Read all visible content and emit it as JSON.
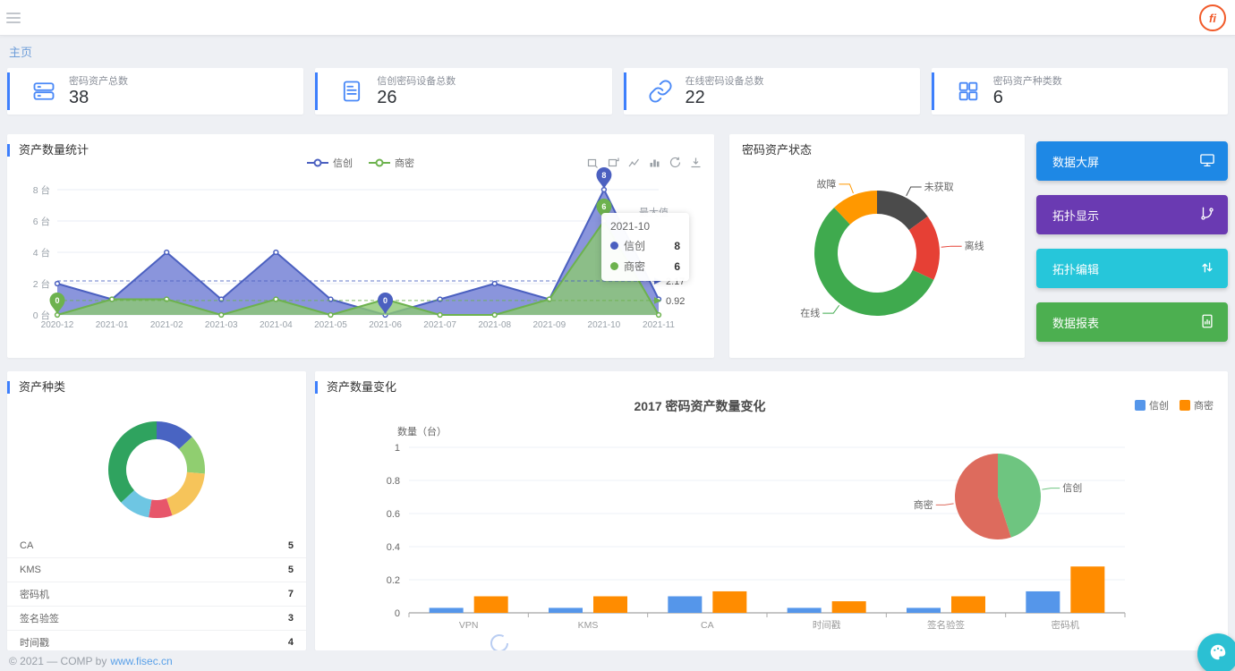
{
  "header": {
    "logo_text": "fi"
  },
  "breadcrumb": {
    "home": "主页"
  },
  "stat_cards": [
    {
      "label": "密码资产总数",
      "value": "38",
      "icon": "server-icon"
    },
    {
      "label": "信创密码设备总数",
      "value": "26",
      "icon": "device-document-icon"
    },
    {
      "label": "在线密码设备总数",
      "value": "22",
      "icon": "link-icon"
    },
    {
      "label": "密码资产种类数",
      "value": "6",
      "icon": "grid-icon"
    }
  ],
  "panels": {
    "asset_count": {
      "title": "资产数量统计"
    },
    "asset_status": {
      "title": "密码资产状态"
    },
    "asset_type": {
      "title": "资产种类"
    },
    "asset_change": {
      "title": "资产数量变化"
    }
  },
  "toolbox_icons": [
    "area-zoom-icon",
    "zoom-reset-icon",
    "line-type-icon",
    "bar-type-icon",
    "restore-icon",
    "save-image-icon"
  ],
  "action_buttons": [
    {
      "label": "数据大屏",
      "color": "#1e88e5",
      "icon": "monitor-icon"
    },
    {
      "label": "拓扑显示",
      "color": "#6a3ab2",
      "icon": "topology-icon"
    },
    {
      "label": "拓扑编辑",
      "color": "#26c6da",
      "icon": "swap-arrows-icon"
    },
    {
      "label": "数据报表",
      "color": "#4caf50",
      "icon": "report-icon"
    }
  ],
  "asset_type_list": [
    {
      "label": "CA",
      "value": "5"
    },
    {
      "label": "KMS",
      "value": "5"
    },
    {
      "label": "密码机",
      "value": "7"
    },
    {
      "label": "签名验签",
      "value": "3"
    },
    {
      "label": "时间戳",
      "value": "4"
    }
  ],
  "footer": {
    "text": "© 2021 — COMP by",
    "link": "www.fisec.cn"
  },
  "colors": {
    "accent_blue": "#3d7ffc",
    "card_icon_blue": "#4a89f7",
    "floating_button_teal": "#2bc0d3",
    "logo_orange": "#f15a29"
  },
  "chart_data": [
    {
      "type": "line",
      "title": "资产数量统计",
      "x": [
        "2020-12",
        "2021-01",
        "2021-02",
        "2021-03",
        "2021-04",
        "2021-05",
        "2021-06",
        "2021-07",
        "2021-08",
        "2021-09",
        "2021-10",
        "2021-11"
      ],
      "series": [
        {
          "name": "信创",
          "line_color": "#4b60c0",
          "area_color": "#7583d6",
          "area_opacity": 0.85,
          "values": [
            2,
            1,
            4,
            1,
            4,
            1,
            0,
            1,
            2,
            1,
            8,
            1
          ],
          "avg": 2.17,
          "max": {
            "x": "2021-10",
            "value": 8
          },
          "min": {
            "x": "2021-06",
            "value": 0
          }
        },
        {
          "name": "商密",
          "line_color": "#6db24e",
          "area_color": "#8cc873",
          "area_opacity": 0.8,
          "values": [
            0,
            1,
            1,
            0,
            1,
            0,
            1,
            0,
            0,
            1,
            6,
            0
          ],
          "avg": 0.92,
          "max": {
            "x": "2021-10",
            "value": 6
          },
          "min": {
            "x": "2020-12",
            "value": 0
          }
        }
      ],
      "ylim": [
        0,
        8
      ],
      "yticks": [
        {
          "v": 0,
          "label": "0 台"
        },
        {
          "v": 2,
          "label": "2 台"
        },
        {
          "v": 4,
          "label": "4 台"
        },
        {
          "v": 6,
          "label": "6 台"
        },
        {
          "v": 8,
          "label": "8 台"
        }
      ],
      "tooltip": {
        "title": "2021-10",
        "values": [
          8,
          6
        ]
      },
      "max_label": "最大值",
      "grid": true,
      "legend_position": "top-center"
    },
    {
      "type": "pie",
      "title": "密码资产状态",
      "donut": true,
      "slices": [
        {
          "label": "未获取",
          "value": 15,
          "color": "#4b4b4b"
        },
        {
          "label": "离线",
          "value": 17,
          "color": "#e64035"
        },
        {
          "label": "在线",
          "value": 56,
          "color": "#3faa4e"
        },
        {
          "label": "故障",
          "value": 12,
          "color": "#ff9800"
        }
      ]
    },
    {
      "type": "pie",
      "title": "资产种类",
      "donut": true,
      "slices": [
        {
          "label": "CA",
          "value": 5,
          "color": "#4964c2"
        },
        {
          "label": "KMS",
          "value": 5,
          "color": "#90ce70"
        },
        {
          "label": "密码机",
          "value": 7,
          "color": "#f6c45a"
        },
        {
          "label": "签名验签",
          "value": 3,
          "color": "#e7566a"
        },
        {
          "label": "时间戳",
          "value": 4,
          "color": "#6ec6e3"
        },
        {
          "label": "VPN",
          "value": 14,
          "color": "#2fa35f"
        }
      ]
    },
    {
      "type": "bar",
      "title": "2017 密码资产数量变化",
      "ylabel": "数量（台）",
      "categories": [
        "VPN",
        "KMS",
        "CA",
        "时间戳",
        "签名验签",
        "密码机"
      ],
      "series": [
        {
          "name": "信创",
          "color": "#5596ea",
          "values": [
            0.03,
            0.03,
            0.1,
            0.03,
            0.03,
            0.13
          ]
        },
        {
          "name": "商密",
          "color": "#ff8c00",
          "values": [
            0.1,
            0.1,
            0.13,
            0.07,
            0.1,
            0.28
          ]
        }
      ],
      "ylim": [
        0,
        1
      ],
      "yticks": [
        0,
        0.2,
        0.4,
        0.6,
        0.8,
        1
      ],
      "grid": true,
      "legend_position": "top-right",
      "pie": {
        "slices": [
          {
            "label": "信创",
            "value": 45,
            "color": "#6ec580"
          },
          {
            "label": "商密",
            "value": 55,
            "color": "#dd6b5d"
          }
        ]
      }
    }
  ]
}
